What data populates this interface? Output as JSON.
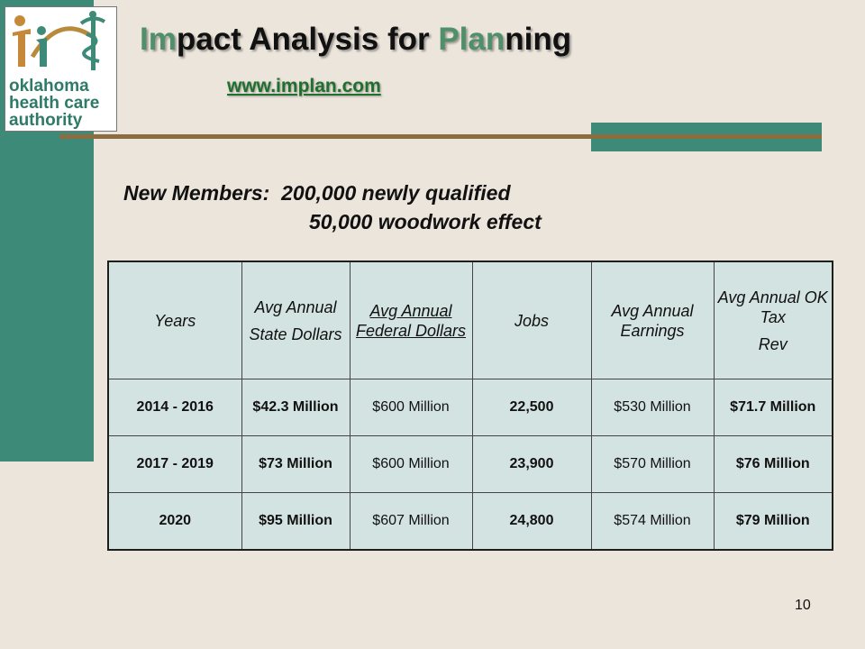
{
  "logo": {
    "text_lines": [
      "oklahoma",
      "health care",
      "authority"
    ]
  },
  "title": {
    "part1_accent": "Im",
    "part2": "pact Analysis for ",
    "part3_accent": "Plan",
    "part4": "ning"
  },
  "url": "www.implan.com",
  "members": {
    "label": "New Members:",
    "line1": "200,000 newly qualified",
    "line2": "50,000 woodwork effect"
  },
  "table": {
    "headers": [
      [
        "Years"
      ],
      [
        "Avg Annual",
        "State Dollars"
      ],
      [
        "Avg Annual Federal Dollars"
      ],
      [
        "Jobs"
      ],
      [
        "Avg Annual Earnings"
      ],
      [
        "Avg Annual OK Tax",
        "Rev"
      ]
    ],
    "rows": [
      [
        "2014 - 2016",
        "$42.3 Million",
        "$600 Million",
        "22,500",
        "$530 Million",
        "$71.7 Million"
      ],
      [
        "2017 - 2019",
        "$73 Million",
        "$600 Million",
        "23,900",
        "$570 Million",
        "$76 Million"
      ],
      [
        "2020",
        "$95 Million",
        "$607 Million",
        "24,800",
        "$574 Million",
        "$79 Million"
      ]
    ]
  },
  "page_number": "10",
  "colors": {
    "teal": "#3d8a78",
    "brown": "#8b6d3f",
    "table_bg": "#d3e3e1",
    "background": "#ece5dc",
    "accent_green": "#4f8f6a"
  }
}
